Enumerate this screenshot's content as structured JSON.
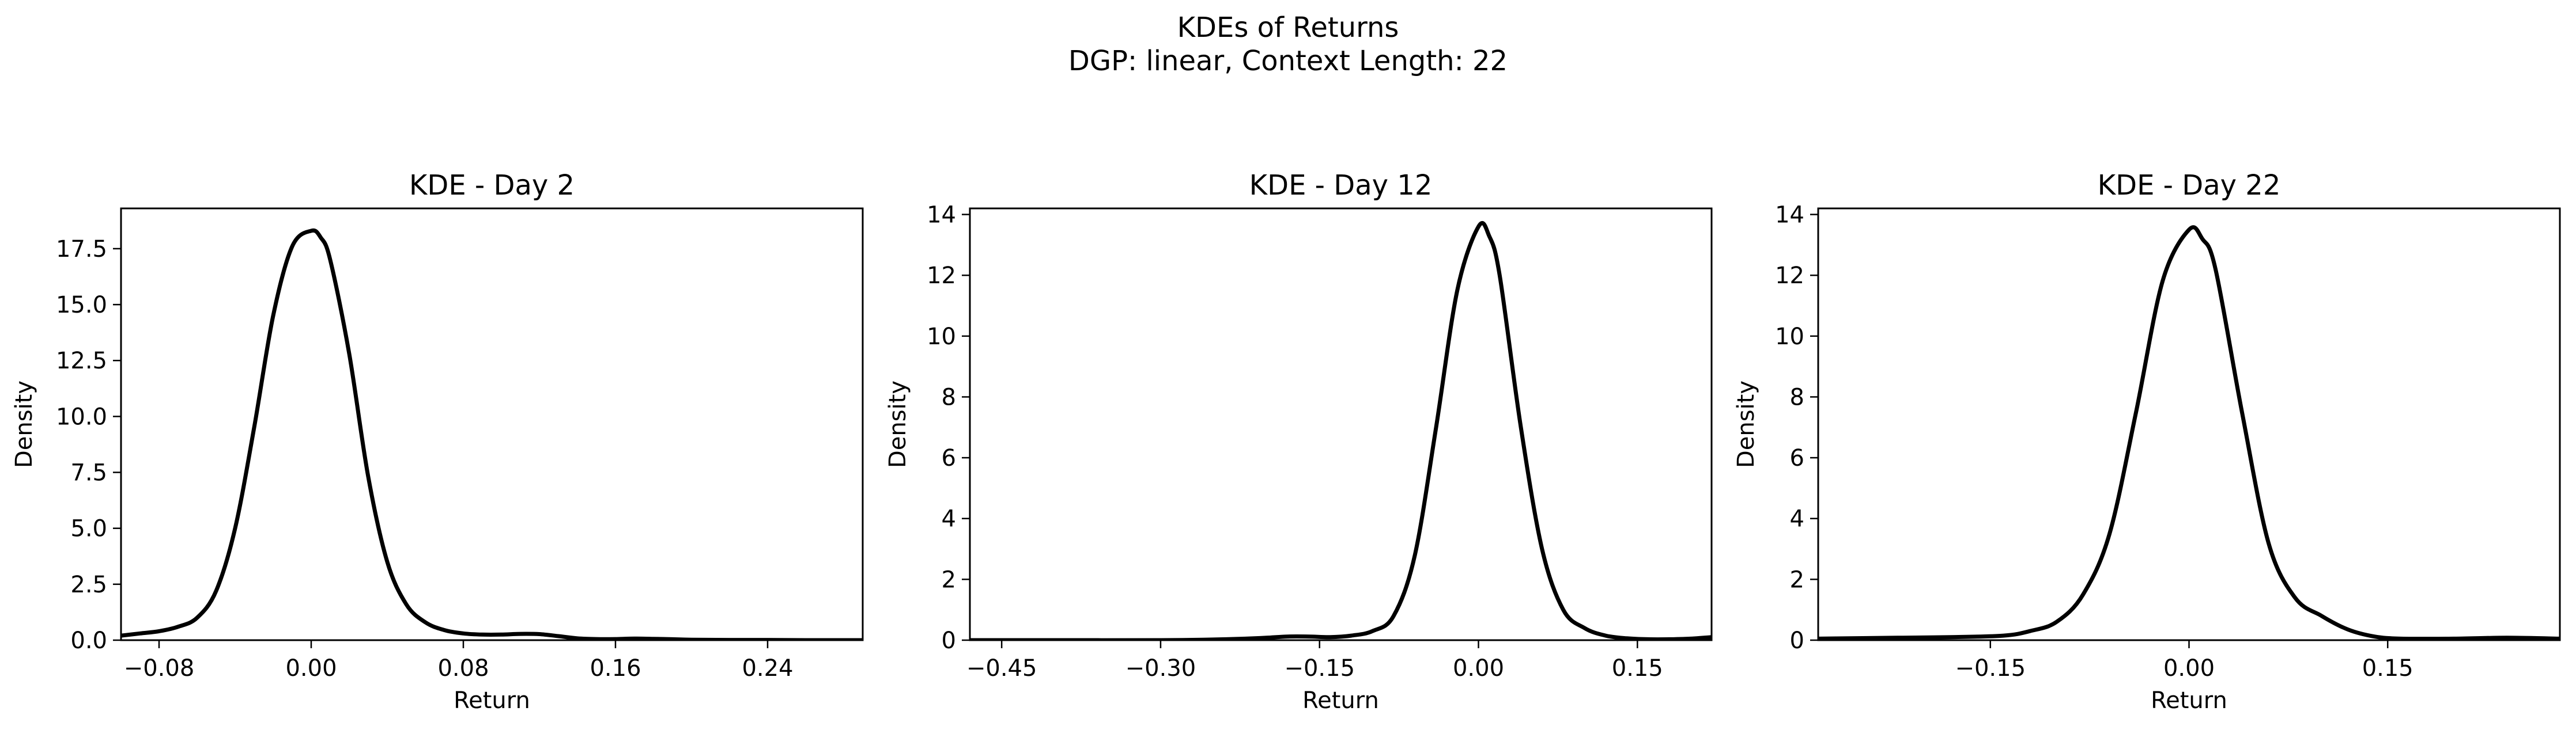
{
  "figure": {
    "title_line1": "KDEs of Returns",
    "title_line2": "DGP: linear, Context Length: 22"
  },
  "chart_data": [
    {
      "type": "line",
      "title": "KDE - Day 2",
      "xlabel": "Return",
      "ylabel": "Density",
      "xlim": [
        -0.1,
        0.29
      ],
      "ylim": [
        0,
        19.3
      ],
      "xticks": [
        -0.08,
        0.0,
        0.08,
        0.16,
        0.24
      ],
      "xtick_labels": [
        "−0.08",
        "0.00",
        "0.08",
        "0.16",
        "0.24"
      ],
      "yticks": [
        0,
        2.5,
        5,
        7.5,
        10,
        12.5,
        15,
        17.5
      ],
      "ytick_labels": [
        "0.0",
        "2.5",
        "5.0",
        "7.5",
        "10.0",
        "12.5",
        "15.0",
        "17.5"
      ],
      "series": [
        {
          "x": [
            -0.1,
            -0.09,
            -0.08,
            -0.07,
            -0.06,
            -0.05,
            -0.04,
            -0.03,
            -0.02,
            -0.01,
            0.0,
            0.005,
            0.01,
            0.02,
            0.03,
            0.04,
            0.05,
            0.06,
            0.07,
            0.08,
            0.09,
            0.1,
            0.11,
            0.12,
            0.13,
            0.14,
            0.15,
            0.16,
            0.17,
            0.18,
            0.19,
            0.2,
            0.22,
            0.24,
            0.26,
            0.29
          ],
          "y": [
            0.2,
            0.3,
            0.4,
            0.6,
            1.0,
            2.2,
            5.0,
            9.5,
            14.5,
            17.6,
            18.3,
            18.0,
            17.0,
            12.8,
            7.3,
            3.5,
            1.6,
            0.8,
            0.45,
            0.3,
            0.25,
            0.25,
            0.28,
            0.27,
            0.18,
            0.08,
            0.05,
            0.05,
            0.07,
            0.06,
            0.04,
            0.02,
            0.01,
            0.01,
            0.0,
            0.0
          ]
        }
      ]
    },
    {
      "type": "line",
      "title": "KDE - Day 12",
      "xlabel": "Return",
      "ylabel": "Density",
      "xlim": [
        -0.48,
        0.22
      ],
      "ylim": [
        0,
        14.2
      ],
      "xticks": [
        -0.45,
        -0.3,
        -0.15,
        0.0,
        0.15
      ],
      "xtick_labels": [
        "−0.45",
        "−0.30",
        "−0.15",
        "0.00",
        "0.15"
      ],
      "yticks": [
        0,
        2,
        4,
        6,
        8,
        10,
        12,
        14
      ],
      "ytick_labels": [
        "0",
        "2",
        "4",
        "6",
        "8",
        "10",
        "12",
        "14"
      ],
      "series": [
        {
          "x": [
            -0.48,
            -0.4,
            -0.3,
            -0.25,
            -0.22,
            -0.2,
            -0.18,
            -0.16,
            -0.14,
            -0.12,
            -0.1,
            -0.08,
            -0.06,
            -0.04,
            -0.02,
            0.0,
            0.01,
            0.02,
            0.04,
            0.06,
            0.08,
            0.1,
            0.12,
            0.14,
            0.16,
            0.18,
            0.2,
            0.22
          ],
          "y": [
            0.0,
            0.0,
            0.0,
            0.02,
            0.05,
            0.08,
            0.12,
            0.12,
            0.1,
            0.15,
            0.3,
            0.8,
            2.8,
            7.0,
            11.5,
            13.6,
            13.3,
            12.0,
            7.0,
            3.0,
            1.0,
            0.4,
            0.15,
            0.06,
            0.03,
            0.03,
            0.05,
            0.1
          ]
        }
      ]
    },
    {
      "type": "line",
      "title": "KDE - Day 22",
      "xlabel": "Return",
      "ylabel": "Density",
      "xlim": [
        -0.28,
        0.28
      ],
      "ylim": [
        0,
        14.2
      ],
      "xticks": [
        -0.15,
        0.0,
        0.15
      ],
      "xtick_labels": [
        "−0.15",
        "0.00",
        "0.15"
      ],
      "yticks": [
        0,
        2,
        4,
        6,
        8,
        10,
        12,
        14
      ],
      "ytick_labels": [
        "0",
        "2",
        "4",
        "6",
        "8",
        "10",
        "12",
        "14"
      ],
      "series": [
        {
          "x": [
            -0.28,
            -0.22,
            -0.18,
            -0.14,
            -0.12,
            -0.1,
            -0.08,
            -0.06,
            -0.04,
            -0.02,
            0.0,
            0.01,
            0.02,
            0.04,
            0.06,
            0.08,
            0.1,
            0.12,
            0.14,
            0.16,
            0.2,
            0.24,
            0.28
          ],
          "y": [
            0.05,
            0.08,
            0.1,
            0.15,
            0.3,
            0.6,
            1.5,
            3.5,
            7.5,
            11.8,
            13.5,
            13.2,
            12.2,
            7.5,
            3.2,
            1.4,
            0.8,
            0.35,
            0.12,
            0.05,
            0.05,
            0.08,
            0.05
          ]
        }
      ]
    }
  ]
}
